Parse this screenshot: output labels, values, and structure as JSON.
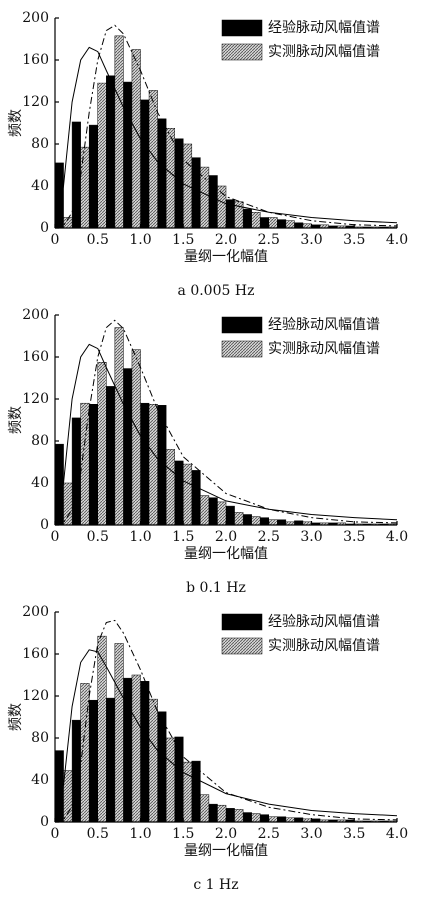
{
  "chart_data": [
    {
      "type": "bar",
      "title": "a 0.005 Hz",
      "x_label": "量纲一化幅值",
      "y_label": "频数",
      "x": [
        0.1,
        0.3,
        0.5,
        0.7,
        0.9,
        1.1,
        1.3,
        1.5,
        1.7,
        1.9,
        2.1,
        2.3,
        2.5,
        2.7,
        2.9,
        3.1,
        3.3,
        3.5,
        3.7,
        3.9
      ],
      "series": [
        {
          "name": "经验脉动风幅值谱",
          "color": "#000000",
          "values": [
            62,
            101,
            98,
            145,
            139,
            122,
            104,
            85,
            67,
            50,
            27,
            18,
            10,
            8,
            5,
            3,
            2,
            2,
            1,
            1
          ]
        },
        {
          "name": "实测脉动风幅值谱",
          "color": "#8c8c8c",
          "hatch": true,
          "values": [
            10,
            77,
            138,
            183,
            170,
            131,
            95,
            80,
            58,
            40,
            25,
            15,
            10,
            7,
            4,
            3,
            2,
            1,
            1,
            1
          ]
        },
        {
          "type": "line",
          "color": "#000000",
          "dash": "solid",
          "x": [
            0,
            0.1,
            0.2,
            0.3,
            0.4,
            0.5,
            0.6,
            0.8,
            1.0,
            1.2,
            1.5,
            2.0,
            2.5,
            3.0,
            3.5,
            4.0
          ],
          "values": [
            0,
            40,
            120,
            160,
            172,
            168,
            150,
            115,
            85,
            63,
            42,
            23,
            15,
            10,
            7,
            5
          ]
        },
        {
          "type": "line",
          "color": "#000000",
          "dash": "dashdot",
          "x": [
            0,
            0.1,
            0.2,
            0.3,
            0.4,
            0.5,
            0.6,
            0.7,
            0.8,
            1.0,
            1.2,
            1.5,
            2.0,
            2.5,
            3.0,
            3.5,
            4.0
          ],
          "values": [
            0,
            2,
            15,
            50,
            110,
            160,
            188,
            193,
            185,
            150,
            110,
            65,
            30,
            15,
            7,
            3,
            2
          ]
        }
      ],
      "xlim": [
        0,
        4
      ],
      "ylim": [
        0,
        200
      ],
      "xticks": [
        0,
        0.5,
        {
          "value": 1,
          "label": "1.0"
        },
        1.5,
        {
          "value": 2,
          "label": "2.0"
        },
        2.5,
        {
          "value": 3,
          "label": "3.0"
        },
        3.5,
        {
          "value": 4,
          "label": "4.0"
        }
      ],
      "yticks": [
        0,
        40,
        80,
        120,
        160,
        200
      ]
    },
    {
      "type": "bar",
      "title": "b 0.1 Hz",
      "x_label": "量纲一化幅值",
      "y_label": "频数",
      "x": [
        0.1,
        0.3,
        0.5,
        0.7,
        0.9,
        1.1,
        1.3,
        1.5,
        1.7,
        1.9,
        2.1,
        2.3,
        2.5,
        2.7,
        2.9,
        3.1,
        3.3,
        3.5,
        3.7,
        3.9
      ],
      "series": [
        {
          "name": "经验脉动风幅值谱",
          "color": "#000000",
          "values": [
            77,
            102,
            115,
            132,
            149,
            116,
            114,
            61,
            52,
            26,
            18,
            10,
            7,
            5,
            4,
            2,
            2,
            1,
            1,
            1
          ]
        },
        {
          "name": "实测脉动风幅值谱",
          "color": "#8c8c8c",
          "hatch": true,
          "values": [
            40,
            116,
            155,
            188,
            167,
            115,
            72,
            58,
            28,
            22,
            12,
            8,
            5,
            3,
            3,
            2,
            2,
            1,
            1,
            1
          ]
        },
        {
          "type": "line",
          "color": "#000000",
          "dash": "solid",
          "x": [
            0,
            0.1,
            0.2,
            0.3,
            0.4,
            0.5,
            0.6,
            0.8,
            1.0,
            1.2,
            1.5,
            2.0,
            2.5,
            3.0,
            3.5,
            4.0
          ],
          "values": [
            0,
            40,
            120,
            160,
            172,
            168,
            150,
            115,
            85,
            63,
            42,
            23,
            15,
            10,
            7,
            5
          ]
        },
        {
          "type": "line",
          "color": "#000000",
          "dash": "dashdot",
          "x": [
            0,
            0.1,
            0.2,
            0.3,
            0.4,
            0.5,
            0.6,
            0.7,
            0.8,
            1.0,
            1.2,
            1.5,
            2.0,
            2.5,
            3.0,
            3.5,
            4.0
          ],
          "values": [
            0,
            2,
            15,
            50,
            110,
            160,
            188,
            195,
            187,
            150,
            110,
            65,
            30,
            15,
            7,
            3,
            2
          ]
        }
      ],
      "xlim": [
        0,
        4
      ],
      "ylim": [
        0,
        200
      ],
      "xticks": [
        0,
        0.5,
        {
          "value": 1,
          "label": "1.0"
        },
        1.5,
        {
          "value": 2,
          "label": "2.0"
        },
        2.5,
        {
          "value": 3,
          "label": "3.0"
        },
        3.5,
        {
          "value": 4,
          "label": "4.0"
        }
      ],
      "yticks": [
        0,
        40,
        80,
        120,
        160,
        200
      ]
    },
    {
      "type": "bar",
      "title": "c 1 Hz",
      "x_label": "量纲一化幅值",
      "y_label": "频数",
      "x": [
        0.1,
        0.3,
        0.5,
        0.7,
        0.9,
        1.1,
        1.3,
        1.5,
        1.7,
        1.9,
        2.1,
        2.3,
        2.5,
        2.7,
        2.9,
        3.1,
        3.3,
        3.5,
        3.7,
        3.9
      ],
      "series": [
        {
          "name": "经验脉动风幅值谱",
          "color": "#000000",
          "values": [
            68,
            97,
            116,
            118,
            137,
            134,
            105,
            81,
            58,
            17,
            13,
            9,
            7,
            5,
            4,
            3,
            2,
            2,
            1,
            1
          ]
        },
        {
          "name": "实测脉动风幅值谱",
          "color": "#8c8c8c",
          "hatch": true,
          "values": [
            49,
            132,
            177,
            170,
            140,
            117,
            80,
            57,
            26,
            16,
            12,
            8,
            5,
            4,
            3,
            2,
            2,
            1,
            1,
            1
          ]
        },
        {
          "type": "line",
          "color": "#000000",
          "dash": "solid",
          "x": [
            0,
            0.1,
            0.2,
            0.3,
            0.4,
            0.5,
            0.6,
            0.8,
            1.0,
            1.2,
            1.5,
            2.0,
            2.5,
            3.0,
            3.5,
            4.0
          ],
          "values": [
            0,
            35,
            110,
            152,
            164,
            162,
            148,
            118,
            90,
            68,
            47,
            27,
            17,
            11,
            8,
            6
          ]
        },
        {
          "type": "line",
          "color": "#000000",
          "dash": "dashdot",
          "x": [
            0,
            0.1,
            0.2,
            0.3,
            0.4,
            0.5,
            0.6,
            0.7,
            0.8,
            1.0,
            1.2,
            1.5,
            2.0,
            2.5,
            3.0,
            3.5,
            4.0
          ],
          "values": [
            0,
            2,
            15,
            55,
            120,
            170,
            190,
            192,
            180,
            145,
            105,
            62,
            28,
            14,
            7,
            3,
            2
          ]
        }
      ],
      "xlim": [
        0,
        4
      ],
      "ylim": [
        0,
        200
      ],
      "xticks": [
        0,
        0.5,
        {
          "value": 1,
          "label": "1.0"
        },
        1.5,
        {
          "value": 2,
          "label": "2.0"
        },
        2.5,
        {
          "value": 3,
          "label": "3.0"
        },
        3.5,
        {
          "value": 4,
          "label": "4.0"
        }
      ],
      "yticks": [
        0,
        40,
        80,
        120,
        160,
        200
      ]
    }
  ]
}
